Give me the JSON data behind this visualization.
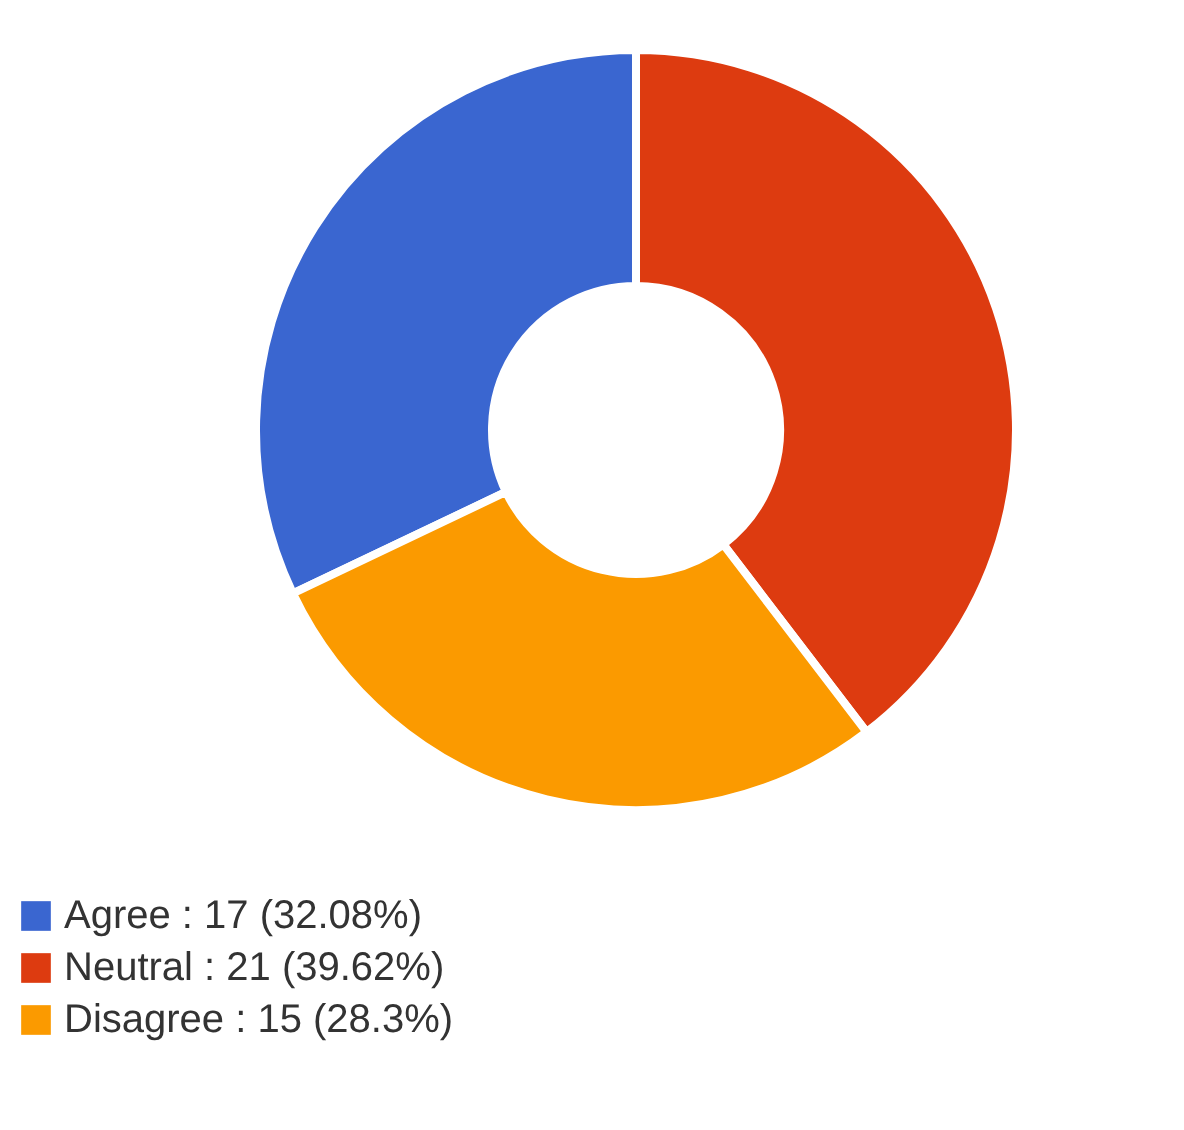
{
  "chart_data": {
    "type": "donut",
    "categories": [
      "Agree : 17 (32.08%)",
      "Neutral : 21 (39.62%)",
      "Disagree : 15 (28.3%)"
    ],
    "values": [
      17,
      21,
      15
    ],
    "colors": [
      "#3a66d0",
      "#dd3b10",
      "#fb9a00"
    ],
    "legend": "bottom left"
  }
}
